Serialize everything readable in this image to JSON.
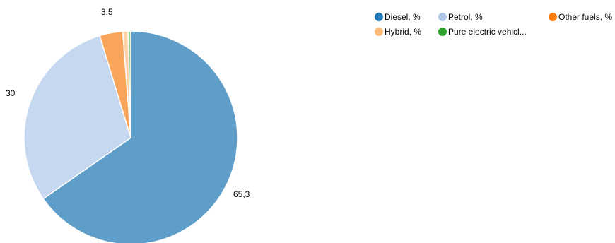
{
  "chart_data": {
    "type": "pie",
    "series": [
      {
        "name": "Diesel, %",
        "value": 65.3,
        "color": "#5f9ec9",
        "legend_color": "#1f77b4",
        "label": "65,3"
      },
      {
        "name": "Petrol, %",
        "value": 30.0,
        "color": "#c6d8ef",
        "legend_color": "#aec7e8",
        "label": "30"
      },
      {
        "name": "Other fuels, %",
        "value": 3.5,
        "color": "#f9a65a",
        "legend_color": "#ff7f0e",
        "label": "3,5"
      },
      {
        "name": "Hybrid, %",
        "value": 0.8,
        "color": "#ffd1a6",
        "legend_color": "#ffbb78",
        "label": ""
      },
      {
        "name": "Pure electric vehicl...",
        "value": 0.4,
        "color": "#8fd18f",
        "legend_color": "#2ca02c",
        "label": ""
      }
    ],
    "start": "12 o'clock",
    "direction": "clockwise",
    "legend": "top-right"
  }
}
